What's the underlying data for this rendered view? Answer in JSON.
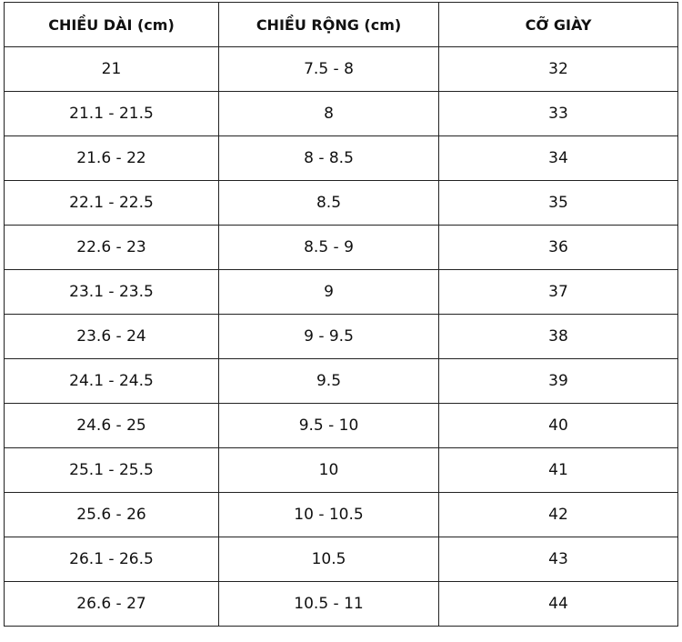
{
  "table": {
    "header": [
      "CHIỀU DÀI (cm)",
      "CHIỀU RỘNG (cm)",
      "CỠ GIÀY"
    ],
    "rows": [
      [
        "21",
        "7.5 - 8",
        "32"
      ],
      [
        "21.1 - 21.5",
        "8",
        "33"
      ],
      [
        "21.6 - 22",
        "8 - 8.5",
        "34"
      ],
      [
        "22.1 - 22.5",
        "8.5",
        "35"
      ],
      [
        "22.6 - 23",
        "8.5 - 9",
        "36"
      ],
      [
        "23.1 - 23.5",
        "9",
        "37"
      ],
      [
        "23.6 - 24",
        "9 - 9.5",
        "38"
      ],
      [
        "24.1 - 24.5",
        "9.5",
        "39"
      ],
      [
        "24.6 - 25",
        "9.5 - 10",
        "40"
      ],
      [
        "25.1 - 25.5",
        "10",
        "41"
      ],
      [
        "25.6 - 26",
        "10 - 10.5",
        "42"
      ],
      [
        "26.1 - 26.5",
        "10.5",
        "43"
      ],
      [
        "26.6 - 27",
        "10.5 - 11",
        "44"
      ]
    ]
  }
}
